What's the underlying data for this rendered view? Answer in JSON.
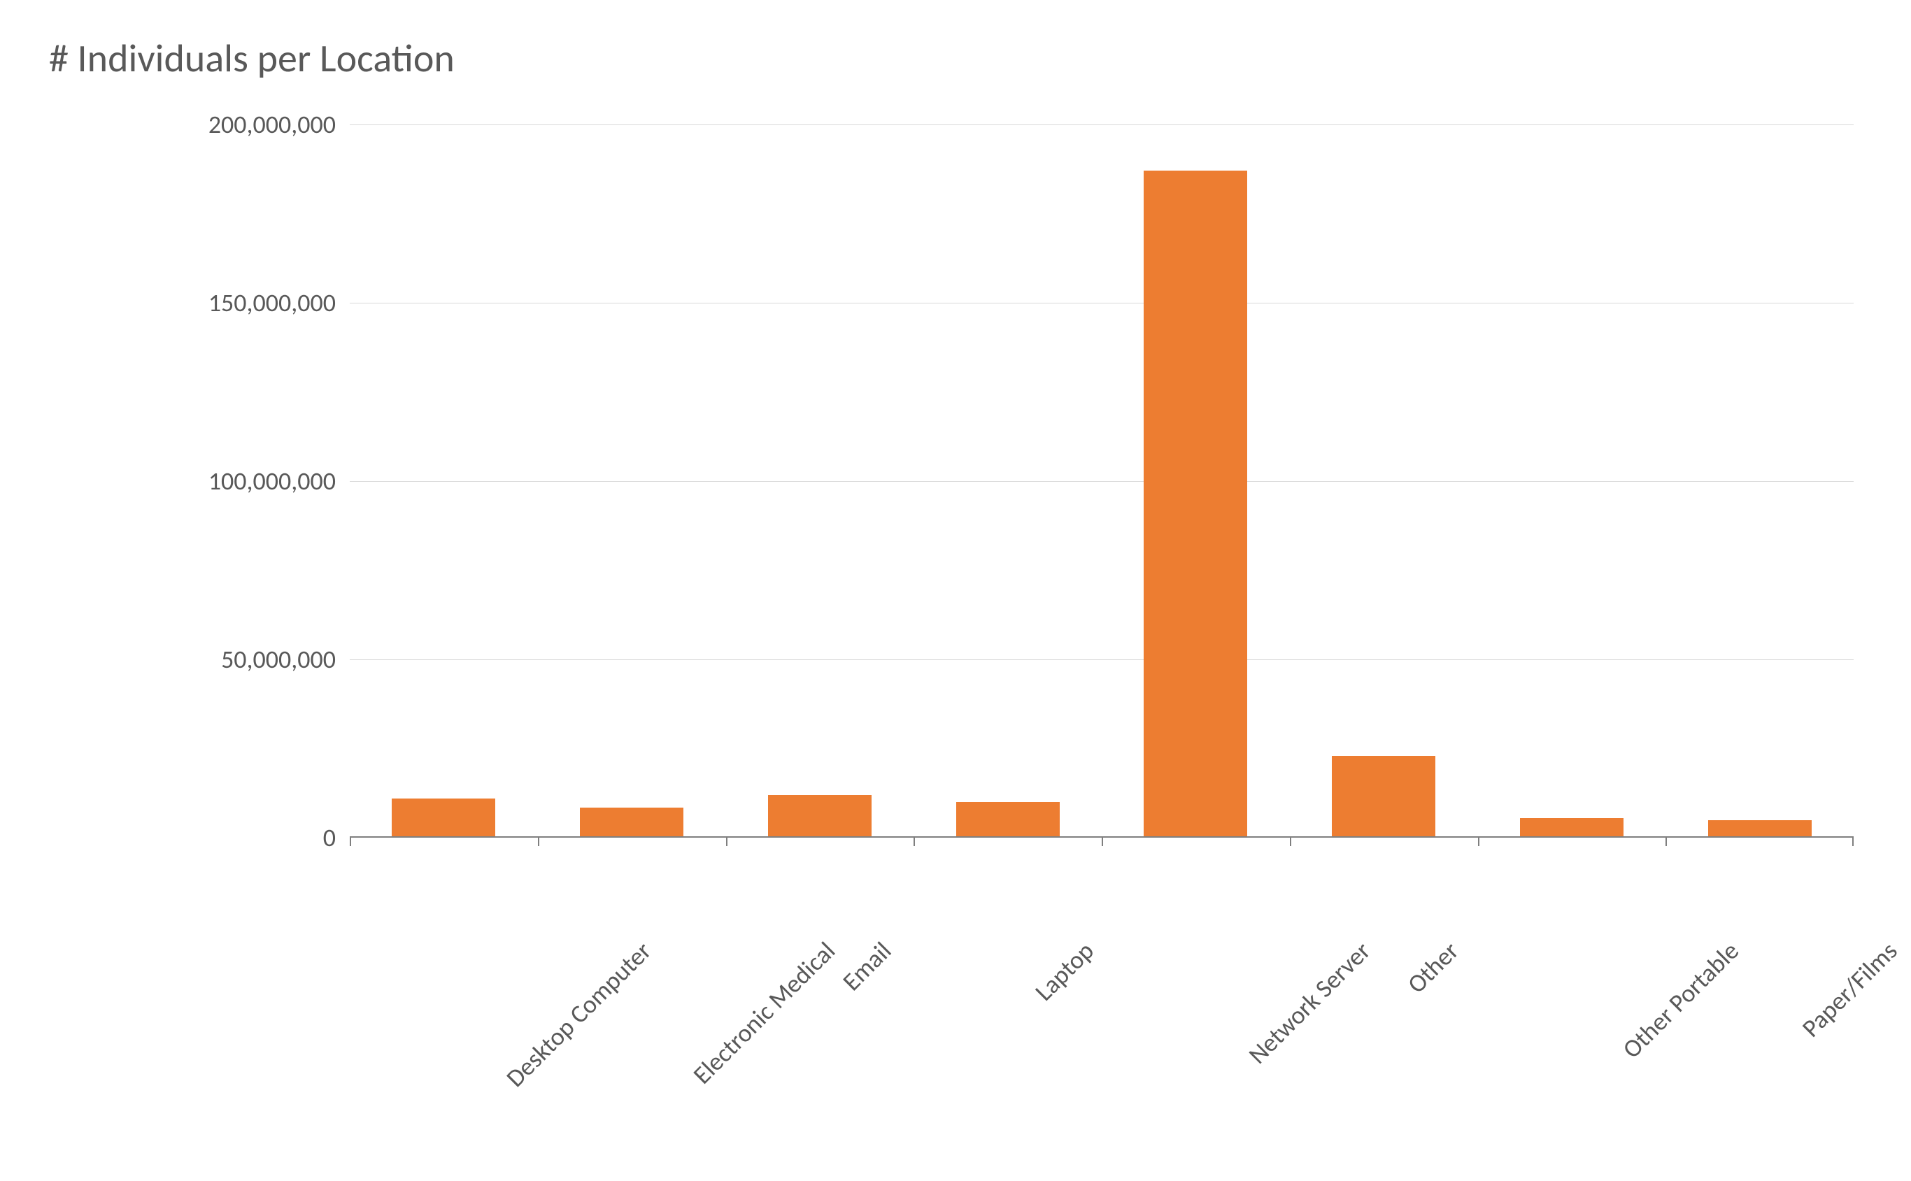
{
  "chart": {
    "type": "bar",
    "title": "# Individuals per Location",
    "title_fontsize": 56,
    "title_color": "#595959",
    "background_color": "#ffffff",
    "grid_color": "#d9d9d9",
    "axis_line_color": "#7f7f7f",
    "axis_label_color": "#595959",
    "axis_label_fontsize": 36,
    "bar_color": "#ed7d31",
    "bar_width_ratio": 0.55,
    "ylim": [
      0,
      200000000
    ],
    "ytick_step": 50000000,
    "y_axis": {
      "ticks": [
        {
          "value": 0,
          "label": "0"
        },
        {
          "value": 50000000,
          "label": "50,000,000"
        },
        {
          "value": 100000000,
          "label": "100,000,000"
        },
        {
          "value": 150000000,
          "label": "150,000,000"
        },
        {
          "value": 200000000,
          "label": "200,000,000"
        }
      ]
    },
    "categories": [
      "Desktop Computer",
      "Electronic Medical",
      "Email",
      "Laptop",
      "Network Server",
      "Other",
      "Other Portable",
      "Paper/Films"
    ],
    "values": [
      11000000,
      8500000,
      12000000,
      10000000,
      187000000,
      23000000,
      5500000,
      5000000
    ],
    "x_label_rotation_deg": -45
  }
}
